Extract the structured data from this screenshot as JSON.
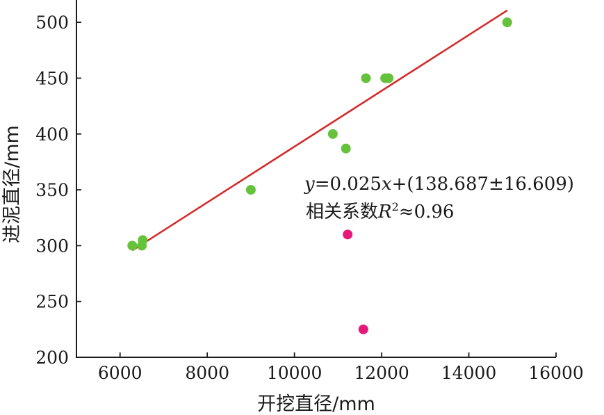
{
  "chart_data": {
    "type": "scatter",
    "xlabel": "开挖直径/mm",
    "ylabel": "进泥直径/mm",
    "xlim": [
      5000,
      16000
    ],
    "ylim": [
      200,
      520
    ],
    "x_ticks": [
      6000,
      8000,
      10000,
      12000,
      14000,
      16000
    ],
    "y_ticks": [
      200,
      250,
      300,
      350,
      400,
      450,
      500
    ],
    "x_tick_labels": [
      "6000",
      "8000",
      "10000",
      "12000",
      "14000",
      "16000"
    ],
    "y_tick_labels": [
      "200",
      "250",
      "300",
      "350",
      "400",
      "450",
      "500"
    ],
    "grid": false,
    "series": [
      {
        "color": "#66c23a",
        "points": [
          {
            "x": 6280,
            "y": 300
          },
          {
            "x": 6500,
            "y": 300
          },
          {
            "x": 6520,
            "y": 305
          },
          {
            "x": 9000,
            "y": 350
          },
          {
            "x": 10880,
            "y": 400
          },
          {
            "x": 11180,
            "y": 387
          },
          {
            "x": 11640,
            "y": 450
          },
          {
            "x": 12080,
            "y": 450
          },
          {
            "x": 12160,
            "y": 450
          },
          {
            "x": 14880,
            "y": 500
          }
        ]
      },
      {
        "color": "#e6197a",
        "points": [
          {
            "x": 11220,
            "y": 310
          },
          {
            "x": 11580,
            "y": 225
          }
        ]
      }
    ],
    "fit_line": {
      "color": "#d42a2a",
      "x_start": 6280,
      "x_end": 14880,
      "slope": 0.025,
      "intercept": 138.687
    },
    "annotation": {
      "eq_y": "y",
      "eq_part1": "=0.025",
      "eq_x": "x",
      "eq_part2": "+(138.687±16.609)",
      "r_label": "相关系数",
      "r_symbol": "R",
      "r_sup": "2",
      "r_value": "≈0.96"
    }
  }
}
